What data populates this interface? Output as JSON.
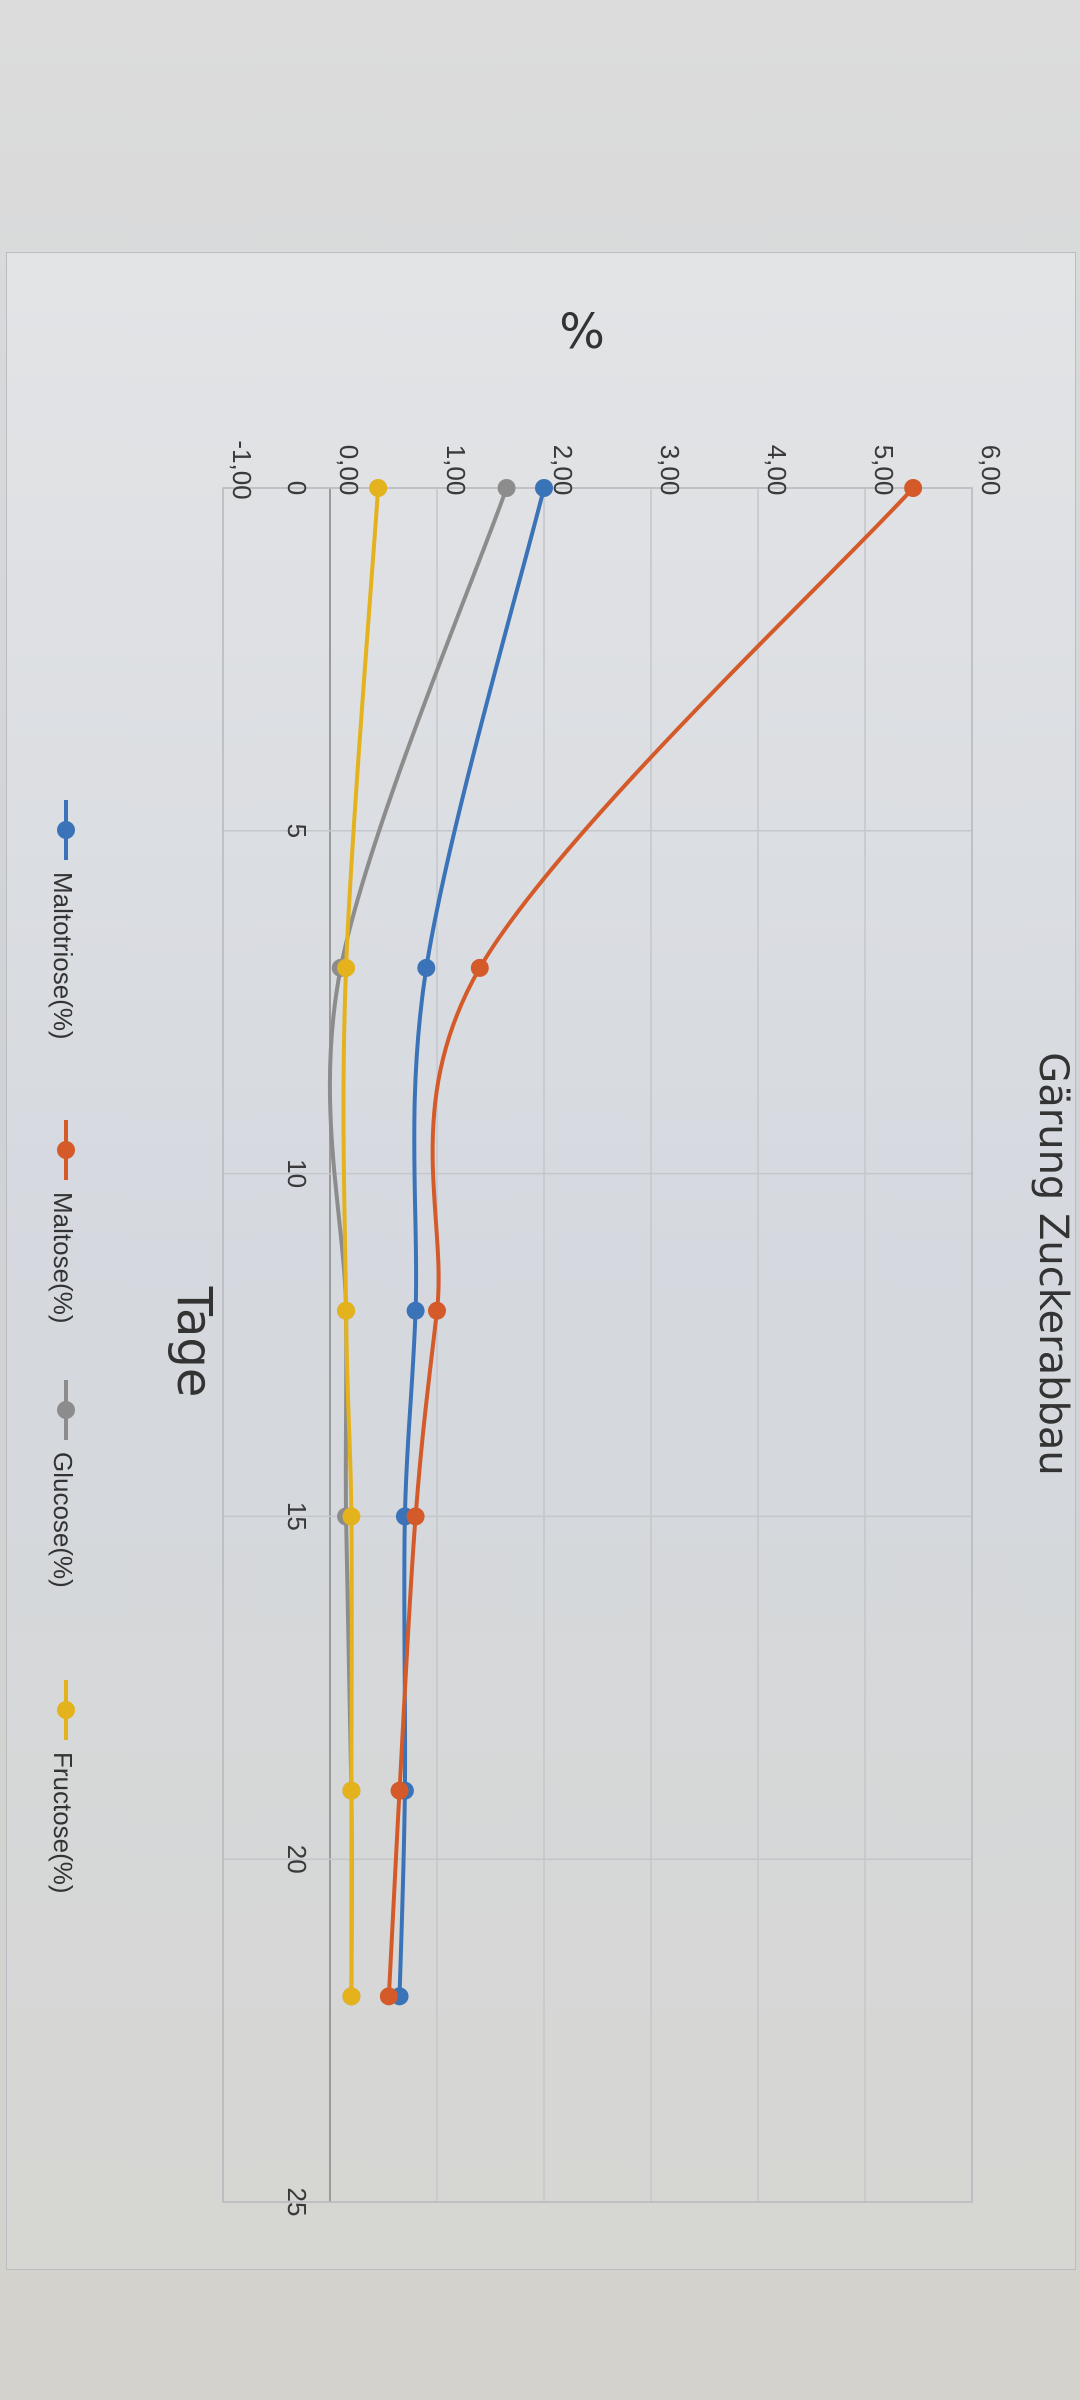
{
  "chart_data": {
    "type": "line",
    "title": "Gärung Zuckerabbau",
    "xlabel": "Tage",
    "ylabel": "%",
    "x": [
      0,
      7,
      12,
      15,
      19,
      22
    ],
    "xlim": [
      0,
      25
    ],
    "ylim": [
      -1,
      6
    ],
    "xticks": [
      "0",
      "5",
      "10",
      "15",
      "20",
      "25"
    ],
    "yticks": [
      "-1,00",
      "0,00",
      "1,00",
      "2,00",
      "3,00",
      "4,00",
      "5,00",
      "6,00"
    ],
    "grid": true,
    "legend_position": "bottom",
    "rotated": "90deg clockwise",
    "series": [
      {
        "name": "Maltotriose(%)",
        "color": "#3b73b9",
        "values": [
          2.0,
          0.9,
          0.8,
          0.7,
          0.7,
          0.65
        ]
      },
      {
        "name": "Maltose(%)",
        "color": "#d45a2a",
        "values": [
          5.45,
          1.4,
          1.0,
          0.8,
          0.65,
          0.55
        ]
      },
      {
        "name": "Glucose(%)",
        "color": "#8c8c8c",
        "values": [
          1.65,
          0.1,
          0.15,
          0.15,
          0.2,
          0.2
        ]
      },
      {
        "name": "Fructose(%)",
        "color": "#e3b21c",
        "values": [
          0.45,
          0.15,
          0.15,
          0.2,
          0.2,
          0.2
        ]
      }
    ]
  }
}
